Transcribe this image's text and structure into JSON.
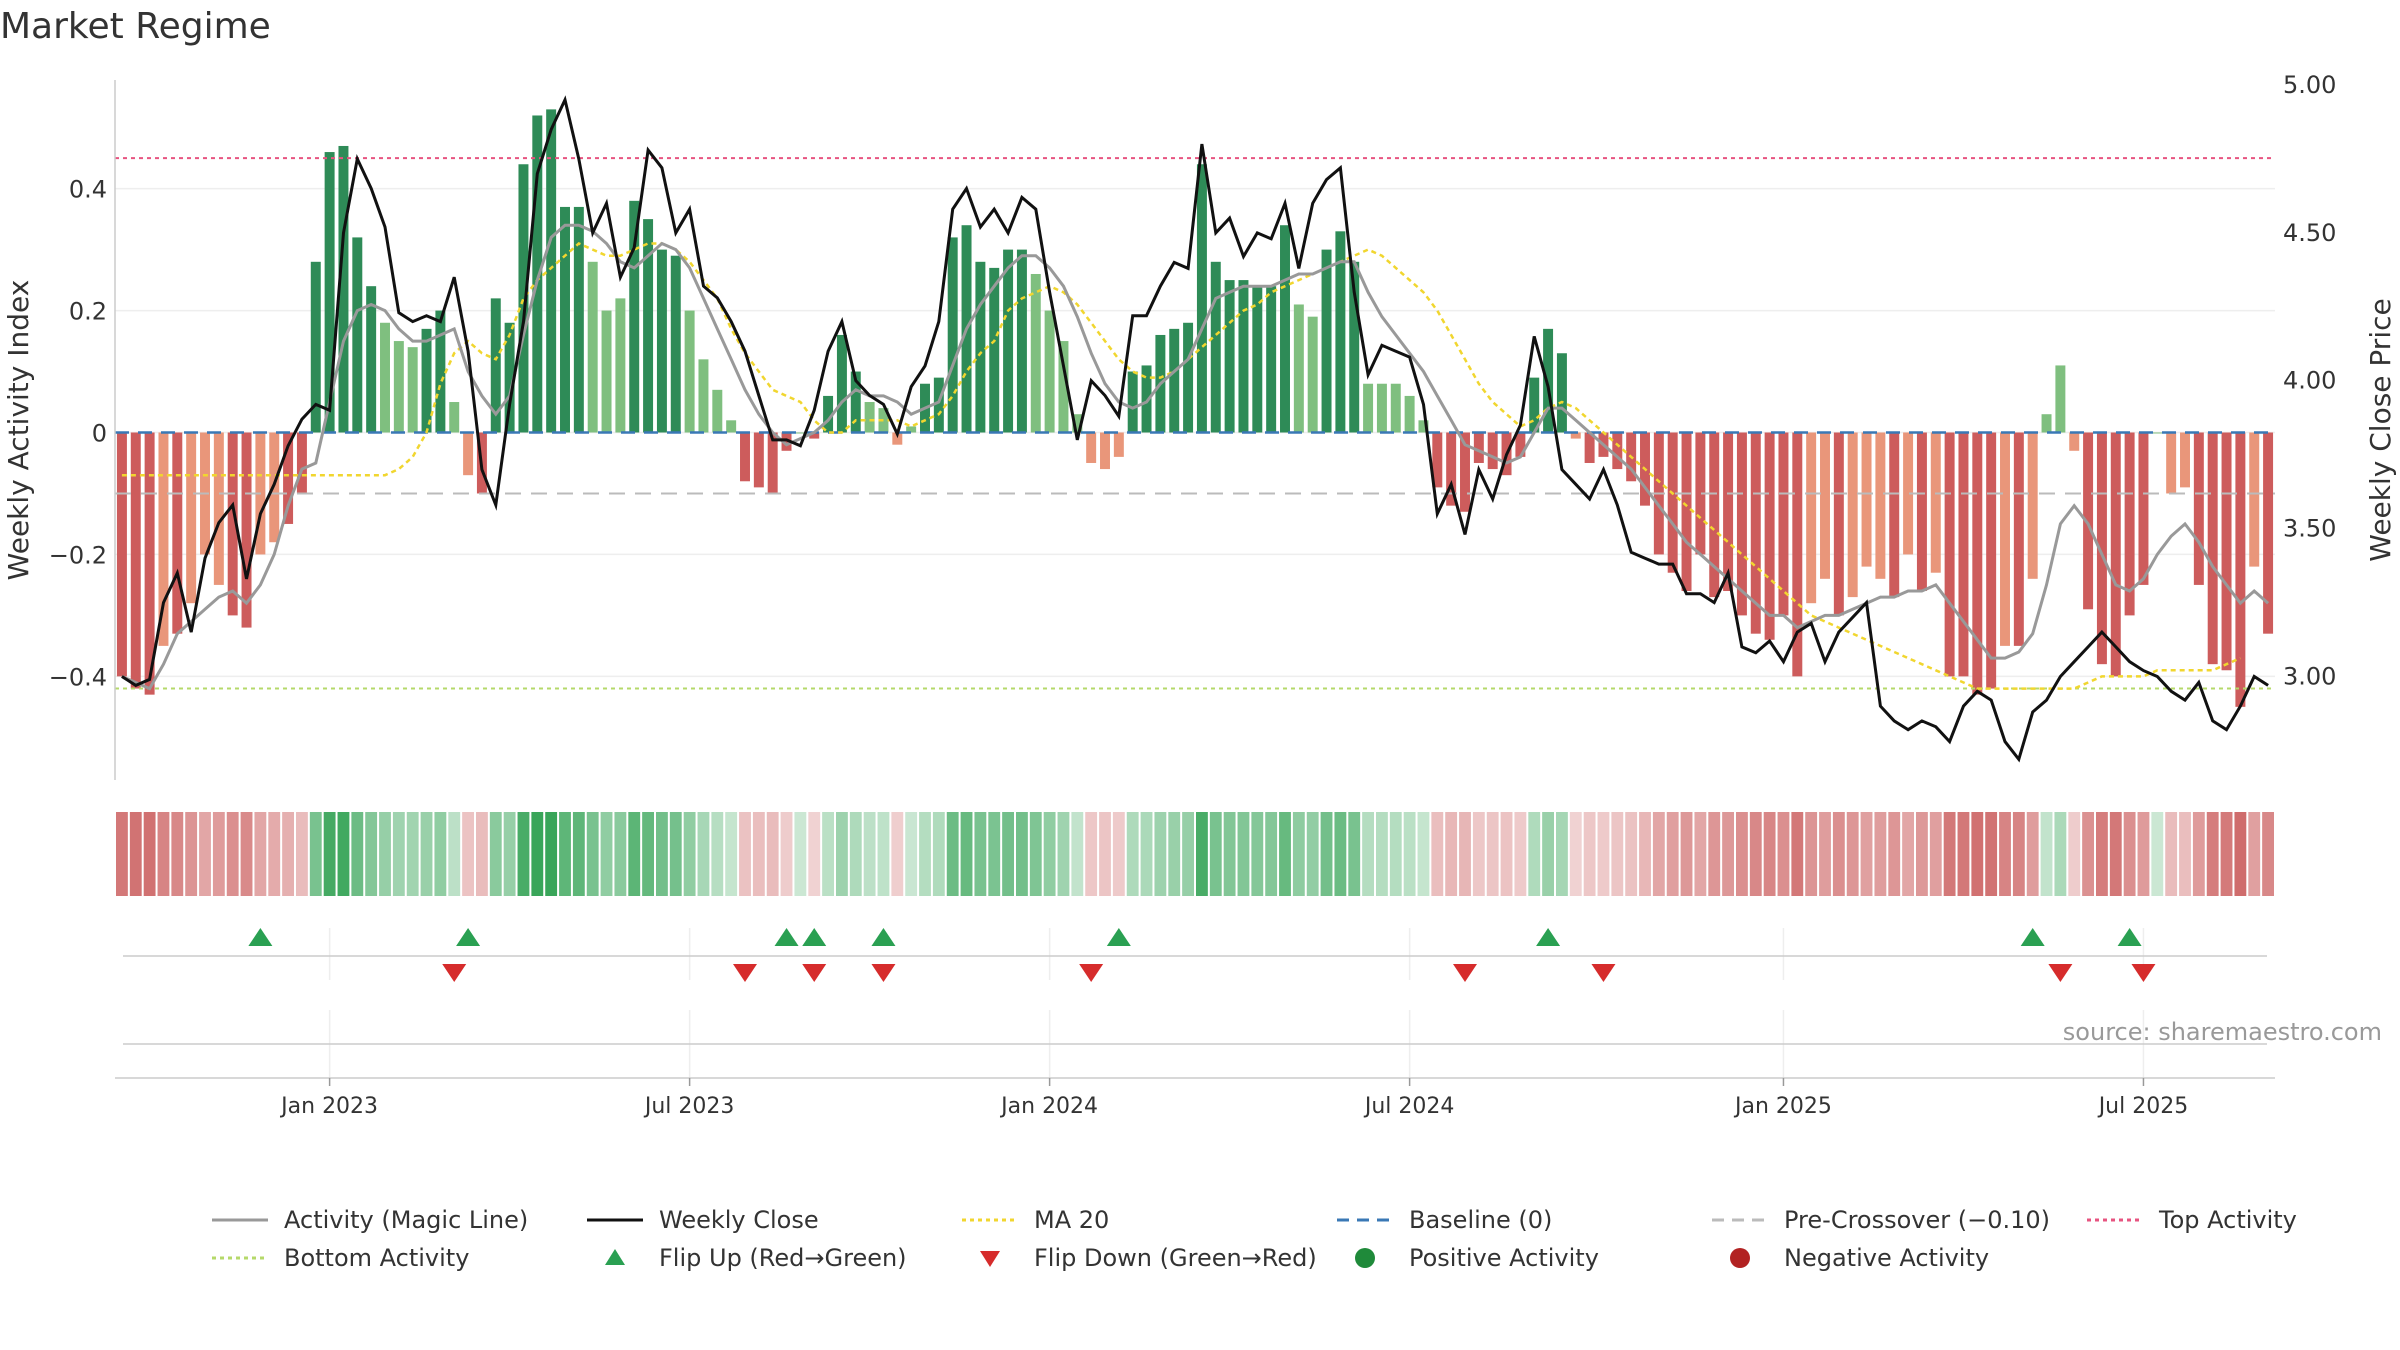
{
  "page_title": "Market Regime",
  "source_text": "source: sharemaestro.com",
  "colors": {
    "strong_green": "#2e8b57",
    "light_green": "#7fbf7f",
    "strong_red": "#cd5c5c",
    "light_red": "#e9967a",
    "top_line": "#e75480",
    "bottom_line": "#b5d96a",
    "ma": "#f1d62f",
    "magic": "#999999",
    "close": "#111111",
    "baseline": "#3a78b5",
    "precross": "#bbbbbb",
    "flip_up": "#2aa052",
    "flip_down": "#d62c2c"
  },
  "chart_data": {
    "type": "bar",
    "title": "Market Regime",
    "y_left_label": "Weekly Activity Index",
    "y_right_label": "Weekly Close Price",
    "y_left_lim": [
      -0.57,
      0.57
    ],
    "y_right_lim": [
      2.65,
      5.0
    ],
    "y_left_ticks": [
      {
        "v": 0.4,
        "label": "0.4"
      },
      {
        "v": 0.2,
        "label": "0.2"
      },
      {
        "v": 0,
        "label": "0"
      },
      {
        "v": -0.2,
        "label": "−0.2"
      },
      {
        "v": -0.4,
        "label": "−0.4"
      }
    ],
    "y_right_ticks": [
      {
        "v": 5.0,
        "label": "5.00"
      },
      {
        "v": 4.5,
        "label": "4.50"
      },
      {
        "v": 4.0,
        "label": "4.00"
      },
      {
        "v": 3.5,
        "label": "3.50"
      },
      {
        "v": 3.0,
        "label": "3.00"
      }
    ],
    "x_ticks": [
      {
        "i": 15,
        "label": "Jan 2023"
      },
      {
        "i": 41,
        "label": "Jul 2023"
      },
      {
        "i": 67,
        "label": "Jan 2024"
      },
      {
        "i": 93,
        "label": "Jul 2024"
      },
      {
        "i": 120,
        "label": "Jan 2025"
      },
      {
        "i": 146,
        "label": "Jul 2025"
      }
    ],
    "reference_lines": {
      "top": 0.45,
      "bottom": -0.42,
      "baseline": 0,
      "pre_crossover": -0.1
    },
    "activity": [
      -0.4,
      -0.42,
      -0.43,
      -0.35,
      -0.33,
      -0.28,
      -0.2,
      -0.25,
      -0.3,
      -0.32,
      -0.2,
      -0.18,
      -0.15,
      -0.1,
      0.28,
      0.46,
      0.47,
      0.32,
      0.24,
      0.18,
      0.15,
      0.14,
      0.17,
      0.2,
      0.05,
      -0.07,
      -0.1,
      0.22,
      0.18,
      0.44,
      0.52,
      0.53,
      0.37,
      0.37,
      0.28,
      0.2,
      0.22,
      0.38,
      0.35,
      0.3,
      0.29,
      0.2,
      0.12,
      0.07,
      0.02,
      -0.08,
      -0.09,
      -0.1,
      -0.03,
      0.0,
      -0.01,
      0.06,
      0.16,
      0.1,
      0.05,
      0.04,
      -0.02,
      0.01,
      0.08,
      0.09,
      0.32,
      0.34,
      0.28,
      0.27,
      0.3,
      0.3,
      0.26,
      0.2,
      0.15,
      0.03,
      -0.05,
      -0.06,
      -0.04,
      0.1,
      0.11,
      0.16,
      0.17,
      0.18,
      0.44,
      0.28,
      0.25,
      0.25,
      0.24,
      0.24,
      0.34,
      0.21,
      0.19,
      0.3,
      0.33,
      0.28,
      0.08,
      0.08,
      0.08,
      0.06,
      0.02,
      -0.09,
      -0.12,
      -0.13,
      -0.05,
      -0.06,
      -0.07,
      -0.04,
      0.09,
      0.17,
      0.13,
      -0.01,
      -0.05,
      -0.04,
      -0.06,
      -0.08,
      -0.12,
      -0.2,
      -0.23,
      -0.26,
      -0.2,
      -0.27,
      -0.26,
      -0.3,
      -0.33,
      -0.34,
      -0.3,
      -0.4,
      -0.28,
      -0.24,
      -0.3,
      -0.27,
      -0.22,
      -0.24,
      -0.27,
      -0.2,
      -0.26,
      -0.23,
      -0.4,
      -0.4,
      -0.43,
      -0.42,
      -0.35,
      -0.35,
      -0.24,
      0.03,
      0.11,
      -0.03,
      -0.29,
      -0.38,
      -0.4,
      -0.3,
      -0.25,
      0.0,
      -0.1,
      -0.09,
      -0.25,
      -0.38,
      -0.39,
      -0.45,
      -0.22,
      -0.33
    ],
    "activity_ma20": [
      -0.4,
      -0.41,
      -0.42,
      -0.38,
      -0.33,
      -0.31,
      -0.29,
      -0.27,
      -0.26,
      -0.28,
      -0.25,
      -0.2,
      -0.12,
      -0.06,
      -0.05,
      0.05,
      0.15,
      0.2,
      0.21,
      0.2,
      0.17,
      0.15,
      0.15,
      0.16,
      0.17,
      0.1,
      0.06,
      0.03,
      0.06,
      0.16,
      0.25,
      0.32,
      0.34,
      0.34,
      0.33,
      0.31,
      0.28,
      0.27,
      0.29,
      0.31,
      0.3,
      0.27,
      0.22,
      0.17,
      0.12,
      0.07,
      0.03,
      0.0,
      -0.02,
      -0.01,
      0.0,
      0.02,
      0.05,
      0.07,
      0.06,
      0.06,
      0.05,
      0.03,
      0.04,
      0.05,
      0.11,
      0.17,
      0.21,
      0.24,
      0.27,
      0.29,
      0.29,
      0.27,
      0.24,
      0.19,
      0.13,
      0.08,
      0.05,
      0.04,
      0.05,
      0.08,
      0.1,
      0.12,
      0.17,
      0.22,
      0.23,
      0.24,
      0.24,
      0.24,
      0.25,
      0.26,
      0.26,
      0.27,
      0.28,
      0.28,
      0.23,
      0.19,
      0.16,
      0.13,
      0.1,
      0.06,
      0.02,
      -0.02,
      -0.03,
      -0.04,
      -0.05,
      -0.04,
      0.0,
      0.04,
      0.04,
      0.02,
      0.0,
      -0.02,
      -0.04,
      -0.06,
      -0.09,
      -0.12,
      -0.15,
      -0.18,
      -0.2,
      -0.22,
      -0.24,
      -0.26,
      -0.28,
      -0.3,
      -0.3,
      -0.32,
      -0.31,
      -0.3,
      -0.3,
      -0.29,
      -0.28,
      -0.27,
      -0.27,
      -0.26,
      -0.26,
      -0.25,
      -0.28,
      -0.31,
      -0.34,
      -0.37,
      -0.37,
      -0.36,
      -0.33,
      -0.25,
      -0.15,
      -0.12,
      -0.15,
      -0.2,
      -0.25,
      -0.26,
      -0.24,
      -0.2,
      -0.17,
      -0.15,
      -0.18,
      -0.22,
      -0.25,
      -0.28,
      -0.26,
      -0.28
    ],
    "pre_ma_activity": [
      -0.07,
      -0.07,
      -0.07,
      -0.07,
      -0.07,
      -0.07,
      -0.07,
      -0.07,
      -0.07,
      -0.07,
      -0.07,
      -0.07,
      -0.07,
      -0.07,
      -0.07,
      -0.07,
      -0.07,
      -0.07,
      -0.07,
      -0.07,
      -0.06,
      -0.04,
      0.0,
      0.08,
      0.13,
      0.15,
      0.13,
      0.12,
      0.16,
      0.22,
      0.25,
      0.27,
      0.29,
      0.31,
      0.3,
      0.29,
      0.29,
      0.3,
      0.31,
      0.31,
      0.3,
      0.28,
      0.25,
      0.22,
      0.17,
      0.13,
      0.1,
      0.07,
      0.06,
      0.05,
      0.02,
      0.0,
      0.0,
      0.02,
      0.02,
      0.02,
      0.02,
      0.01,
      0.02,
      0.03,
      0.06,
      0.1,
      0.13,
      0.15,
      0.2,
      0.22,
      0.23,
      0.24,
      0.23,
      0.21,
      0.18,
      0.15,
      0.12,
      0.1,
      0.09,
      0.09,
      0.1,
      0.12,
      0.14,
      0.16,
      0.18,
      0.2,
      0.21,
      0.23,
      0.24,
      0.25,
      0.26,
      0.27,
      0.28,
      0.29,
      0.3,
      0.29,
      0.27,
      0.25,
      0.23,
      0.2,
      0.16,
      0.12,
      0.08,
      0.05,
      0.03,
      0.01,
      0.02,
      0.04,
      0.05,
      0.04,
      0.02,
      0.0,
      -0.02,
      -0.04,
      -0.06,
      -0.08,
      -0.1,
      -0.12,
      -0.14,
      -0.16,
      -0.18,
      -0.2,
      -0.22,
      -0.24,
      -0.26,
      -0.28,
      -0.3,
      -0.31,
      -0.32,
      -0.33,
      -0.34,
      -0.35,
      -0.36,
      -0.37,
      -0.38,
      -0.39,
      -0.4,
      -0.41,
      -0.42,
      -0.42,
      -0.42,
      -0.42,
      -0.42,
      -0.42,
      -0.42,
      -0.42,
      -0.41,
      -0.4,
      -0.4,
      -0.4,
      -0.4,
      -0.39,
      -0.39,
      -0.39,
      -0.39,
      -0.39,
      -0.38,
      -0.37
    ],
    "weekly_close": [
      3.0,
      2.97,
      2.99,
      3.25,
      3.35,
      3.15,
      3.4,
      3.52,
      3.58,
      3.33,
      3.55,
      3.65,
      3.78,
      3.87,
      3.92,
      3.9,
      4.5,
      4.75,
      4.65,
      4.52,
      4.23,
      4.2,
      4.22,
      4.2,
      4.35,
      4.1,
      3.7,
      3.58,
      3.92,
      4.2,
      4.7,
      4.85,
      4.95,
      4.75,
      4.5,
      4.6,
      4.35,
      4.45,
      4.78,
      4.72,
      4.5,
      4.58,
      4.32,
      4.28,
      4.2,
      4.1,
      3.95,
      3.8,
      3.8,
      3.78,
      3.9,
      4.1,
      4.2,
      4.0,
      3.95,
      3.92,
      3.82,
      3.98,
      4.05,
      4.2,
      4.58,
      4.65,
      4.52,
      4.58,
      4.5,
      4.62,
      4.58,
      4.3,
      4.05,
      3.8,
      4.0,
      3.95,
      3.88,
      4.22,
      4.22,
      4.32,
      4.4,
      4.38,
      4.8,
      4.5,
      4.55,
      4.42,
      4.5,
      4.48,
      4.6,
      4.38,
      4.6,
      4.68,
      4.72,
      4.3,
      4.02,
      4.12,
      4.1,
      4.08,
      3.92,
      3.55,
      3.65,
      3.48,
      3.7,
      3.6,
      3.75,
      3.85,
      4.15,
      3.98,
      3.7,
      3.65,
      3.6,
      3.7,
      3.58,
      3.42,
      3.4,
      3.38,
      3.38,
      3.28,
      3.28,
      3.25,
      3.35,
      3.1,
      3.08,
      3.12,
      3.05,
      3.15,
      3.18,
      3.05,
      3.15,
      3.2,
      3.25,
      2.9,
      2.85,
      2.82,
      2.85,
      2.83,
      2.78,
      2.9,
      2.95,
      2.92,
      2.78,
      2.72,
      2.88,
      2.92,
      3.0,
      3.05,
      3.1,
      3.15,
      3.1,
      3.05,
      3.02,
      3.0,
      2.95,
      2.92,
      2.98,
      2.85,
      2.82,
      2.9,
      3.0,
      2.97
    ]
  },
  "band_labels": {},
  "flip_up_indices": [
    10,
    25,
    48,
    50,
    55,
    72,
    103,
    138,
    145
  ],
  "flip_down_indices": [
    24,
    45,
    50,
    55,
    70,
    97,
    107,
    140,
    146
  ],
  "legend": [
    {
      "key": "magic",
      "kind": "line",
      "color": "#999999",
      "dash": "",
      "label": "Activity (Magic Line)"
    },
    {
      "key": "close",
      "kind": "line",
      "color": "#111111",
      "dash": "",
      "label": "Weekly Close"
    },
    {
      "key": "ma",
      "kind": "line",
      "color": "#f1d62f",
      "dash": "4,4",
      "label": "MA 20"
    },
    {
      "key": "baseline",
      "kind": "line",
      "color": "#3a78b5",
      "dash": "12,8",
      "label": "Baseline (0)"
    },
    {
      "key": "precross",
      "kind": "line",
      "color": "#bbbbbb",
      "dash": "12,8",
      "label": "Pre-Crossover (−0.10)"
    },
    {
      "key": "top",
      "kind": "line",
      "color": "#e75480",
      "dash": "4,4",
      "label": "Top Activity"
    },
    {
      "key": "bottom",
      "kind": "line",
      "color": "#b5d96a",
      "dash": "4,4",
      "label": "Bottom Activity"
    },
    {
      "key": "flipup",
      "kind": "tri-up",
      "color": "#2aa052",
      "dash": "",
      "label": "Flip Up (Red→Green)"
    },
    {
      "key": "flipdown",
      "kind": "tri-down",
      "color": "#d62c2c",
      "dash": "",
      "label": "Flip Down (Green→Red)"
    },
    {
      "key": "pos",
      "kind": "dot",
      "color": "#1f8a3a",
      "dash": "",
      "label": "Positive Activity"
    },
    {
      "key": "neg",
      "kind": "dot",
      "color": "#b22222",
      "dash": "",
      "label": "Negative Activity"
    }
  ]
}
